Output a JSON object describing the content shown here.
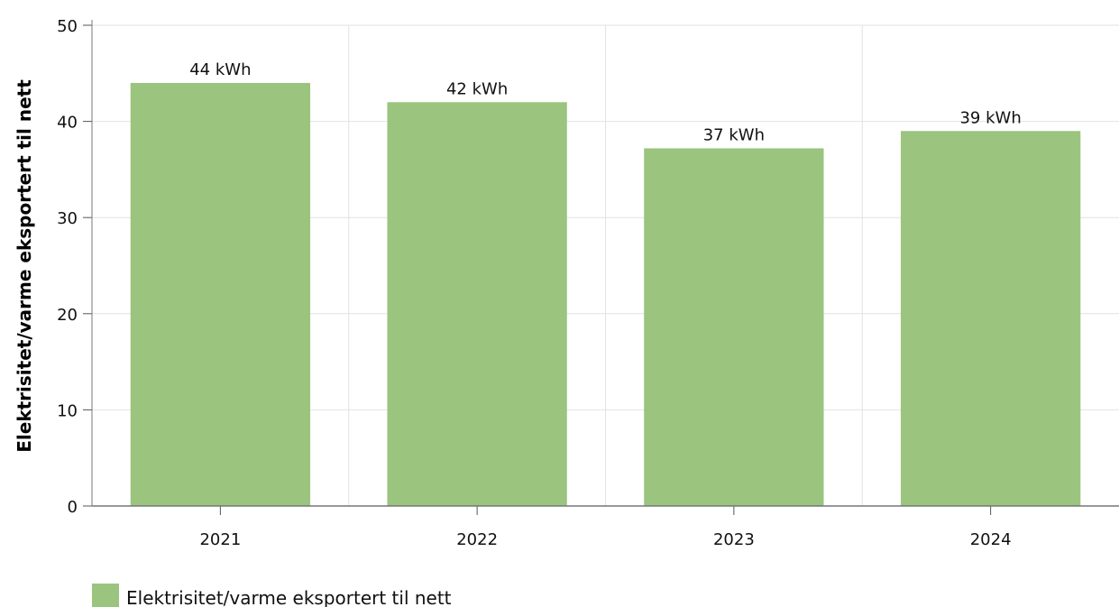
{
  "chart_data": {
    "type": "bar",
    "categories": [
      "2021",
      "2022",
      "2023",
      "2024"
    ],
    "series": [
      {
        "name": "Elektrisitet/varme eksportert til nett",
        "values": [
          44,
          42,
          37.2,
          39
        ],
        "data_labels": [
          "44 kWh",
          "42 kWh",
          "37 kWh",
          "39 kWh"
        ],
        "color": "#9bc47f"
      }
    ],
    "ylabel": "Elektrisitet/varme eksportert til nett",
    "xlabel": "",
    "ylim": [
      0,
      50
    ],
    "yticks": [
      0,
      10,
      20,
      30,
      40,
      50
    ],
    "grid": true,
    "legend_position": "bottom-left"
  }
}
